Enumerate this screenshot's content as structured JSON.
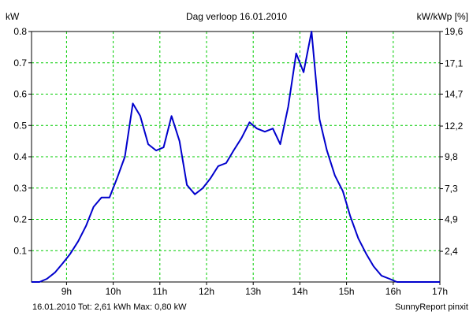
{
  "colors": {
    "series_line": "#0000cc",
    "grid": "#00cc00",
    "footer_text": "#0000cc",
    "background": "#ffffff"
  },
  "header": {
    "title": "Dag  verloop 16.01.2010",
    "left_unit": "kW",
    "right_unit": "kW/kWp [%]"
  },
  "footer": {
    "summary": "16.01.2010 Tot: 2,61 kWh Max: 0,80 kW",
    "credit": "SunnyReport pinxit"
  },
  "chart_data": {
    "type": "line",
    "title": "Dag  verloop 16.01.2010",
    "xlabel": "",
    "ylabel": "kW",
    "y2label": "kW/kWp [%]",
    "x_unit": "hour of day",
    "xlim": [
      8.25,
      17.0
    ],
    "ylim": [
      0,
      0.8
    ],
    "grid": true,
    "legend": "none",
    "x_ticks": [
      9,
      10,
      11,
      12,
      13,
      14,
      15,
      16,
      17
    ],
    "x_tick_labels": [
      "9h",
      "10h",
      "11h",
      "12h",
      "13h",
      "14h",
      "15h",
      "16h",
      "17h"
    ],
    "y_ticks": [
      0.1,
      0.2,
      0.3,
      0.4,
      0.5,
      0.6,
      0.7,
      0.8
    ],
    "y_tick_labels": [
      "0.1",
      "0.2",
      "0.3",
      "0.4",
      "0.5",
      "0.6",
      "0.7",
      "0.8"
    ],
    "y2_ticks": [
      2.4,
      4.9,
      7.3,
      9.8,
      12.2,
      14.7,
      17.1,
      19.6
    ],
    "y2_tick_labels": [
      "2,4",
      "4,9",
      "7,3",
      "9,8",
      "12,2",
      "14,7",
      "17,1",
      "19,6"
    ],
    "series": [
      {
        "x": [
          8.25,
          8.42,
          8.58,
          8.75,
          8.92,
          9.08,
          9.25,
          9.42,
          9.58,
          9.75,
          9.92,
          10.08,
          10.25,
          10.42,
          10.58,
          10.75,
          10.92,
          11.08,
          11.25,
          11.42,
          11.58,
          11.75,
          11.92,
          12.08,
          12.25,
          12.42,
          12.58,
          12.75,
          12.92,
          13.08,
          13.25,
          13.42,
          13.58,
          13.75,
          13.92,
          14.08,
          14.25,
          14.42,
          14.58,
          14.75,
          14.92,
          15.08,
          15.25,
          15.42,
          15.58,
          15.75,
          15.92,
          16.08,
          16.25,
          16.42,
          16.58,
          16.75,
          17.0
        ],
        "y": [
          0.0,
          0.0,
          0.01,
          0.03,
          0.06,
          0.09,
          0.13,
          0.18,
          0.24,
          0.27,
          0.27,
          0.33,
          0.4,
          0.57,
          0.53,
          0.44,
          0.42,
          0.43,
          0.53,
          0.45,
          0.31,
          0.28,
          0.3,
          0.33,
          0.37,
          0.38,
          0.42,
          0.46,
          0.51,
          0.49,
          0.48,
          0.49,
          0.44,
          0.56,
          0.73,
          0.67,
          0.8,
          0.52,
          0.42,
          0.34,
          0.29,
          0.21,
          0.14,
          0.09,
          0.05,
          0.02,
          0.01,
          0.0,
          0.0,
          0.0,
          0.0,
          0.0,
          0.0
        ]
      }
    ]
  }
}
